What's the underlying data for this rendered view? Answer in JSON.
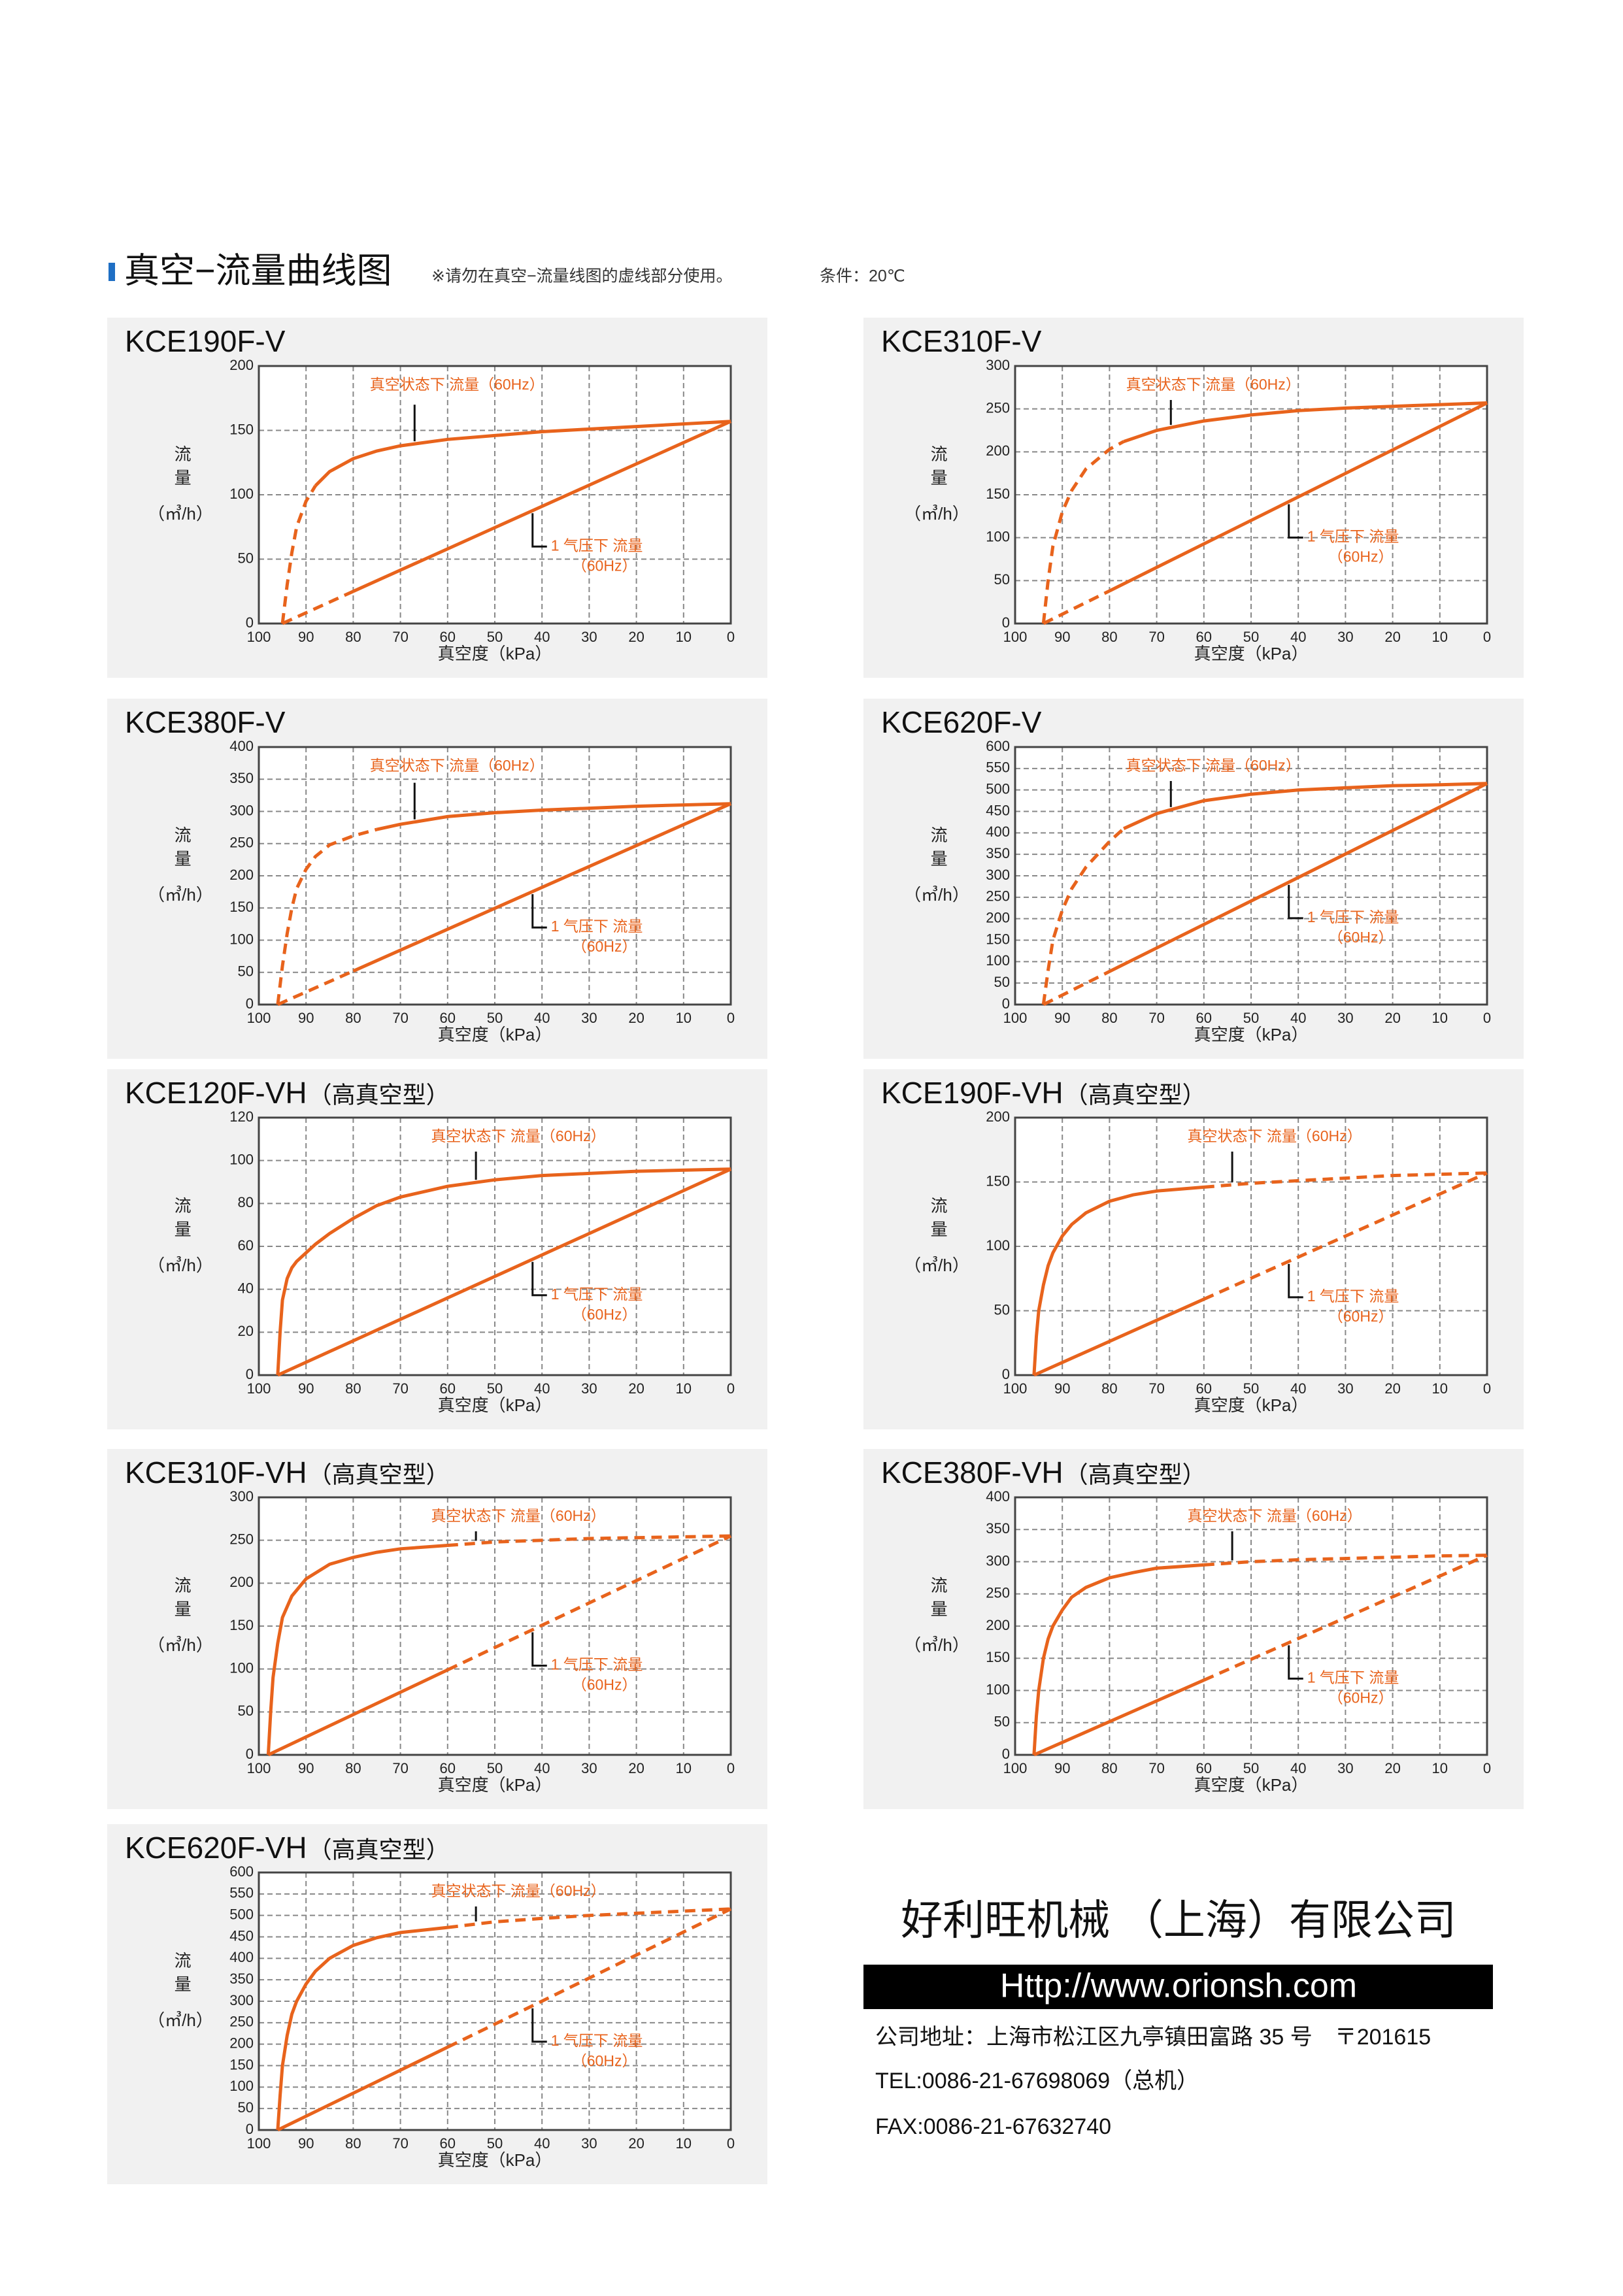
{
  "header": {
    "title": "真空−流量曲线图",
    "note": "※请勿在真空−流量线图的虚线部分使用。",
    "condition": "条件：20℃"
  },
  "chart_data": [
    {
      "type": "line",
      "title": "KCE190F-V",
      "y_label": "流量",
      "y_unit": "（㎥/h）",
      "x_label": "真空度（kPa）",
      "xlim": [
        100,
        0
      ],
      "xticks": [
        100,
        90,
        80,
        70,
        60,
        50,
        40,
        30,
        20,
        10,
        0
      ],
      "ylim": [
        0,
        200
      ],
      "yticks": [
        0,
        50,
        100,
        150,
        200
      ],
      "grid": true,
      "series": [
        {
          "name": "真空状态下 流量（60Hz）",
          "color": "#e8631c",
          "x": [
            95,
            94,
            93,
            92,
            90,
            88,
            85,
            80,
            75,
            70,
            60,
            50,
            40,
            30,
            20,
            10,
            0
          ],
          "values": [
            0,
            30,
            55,
            75,
            95,
            107,
            118,
            128,
            134,
            138,
            143,
            146,
            149,
            151,
            153,
            155,
            157
          ],
          "segment_styles": [
            "dashed",
            "dashed",
            "dashed",
            "dashed",
            "dashed",
            "solid",
            "solid",
            "solid",
            "solid",
            "solid",
            "solid",
            "solid",
            "solid",
            "solid",
            "solid",
            "solid"
          ]
        },
        {
          "name": "1 气压下 流量",
          "note": "（60Hz）",
          "color": "#e8631c",
          "x": [
            95,
            80,
            0
          ],
          "values": [
            0,
            25,
            157
          ],
          "segment_styles": [
            "dashed",
            "solid"
          ]
        }
      ]
    },
    {
      "type": "line",
      "title": "KCE310F-V",
      "y_label": "流量",
      "y_unit": "（㎥/h）",
      "x_label": "真空度（kPa）",
      "xlim": [
        100,
        0
      ],
      "xticks": [
        100,
        90,
        80,
        70,
        60,
        50,
        40,
        30,
        20,
        10,
        0
      ],
      "ylim": [
        0,
        300
      ],
      "yticks": [
        0,
        50,
        100,
        150,
        200,
        250,
        300
      ],
      "grid": true,
      "series": [
        {
          "name": "真空状态下 流量（60Hz）",
          "color": "#e8631c",
          "x": [
            94,
            93,
            92,
            90,
            88,
            85,
            80,
            77,
            70,
            60,
            50,
            40,
            30,
            20,
            10,
            0
          ],
          "values": [
            0,
            50,
            90,
            130,
            155,
            180,
            203,
            212,
            225,
            236,
            243,
            248,
            251,
            253,
            255,
            257
          ],
          "segment_styles": [
            "dashed",
            "dashed",
            "dashed",
            "dashed",
            "dashed",
            "dashed",
            "dashed",
            "solid",
            "solid",
            "solid",
            "solid",
            "solid",
            "solid",
            "solid",
            "solid"
          ]
        },
        {
          "name": "1 气压下 流量",
          "note": "（60Hz）",
          "color": "#e8631c",
          "x": [
            94,
            80,
            0
          ],
          "values": [
            0,
            38,
            257
          ],
          "segment_styles": [
            "dashed",
            "solid"
          ]
        }
      ]
    },
    {
      "type": "line",
      "title": "KCE380F-V",
      "y_label": "流量",
      "y_unit": "（㎥/h）",
      "x_label": "真空度（kPa）",
      "xlim": [
        100,
        0
      ],
      "xticks": [
        100,
        90,
        80,
        70,
        60,
        50,
        40,
        30,
        20,
        10,
        0
      ],
      "ylim": [
        0,
        400
      ],
      "yticks": [
        0,
        50,
        100,
        150,
        200,
        250,
        300,
        350,
        400
      ],
      "grid": true,
      "series": [
        {
          "name": "真空状态下 流量（60Hz）",
          "color": "#e8631c",
          "x": [
            96,
            95,
            94,
            93,
            92,
            90,
            88,
            85,
            80,
            75,
            70,
            60,
            50,
            40,
            30,
            20,
            10,
            0
          ],
          "values": [
            0,
            60,
            110,
            150,
            180,
            210,
            230,
            248,
            262,
            272,
            280,
            292,
            298,
            302,
            305,
            308,
            310,
            312
          ],
          "segment_styles": [
            "dashed",
            "dashed",
            "dashed",
            "dashed",
            "dashed",
            "dashed",
            "dashed",
            "dashed",
            "dashed",
            "solid",
            "solid",
            "solid",
            "solid",
            "solid",
            "solid",
            "solid",
            "solid"
          ]
        },
        {
          "name": "1 气压下 流量",
          "note": "（60Hz）",
          "color": "#e8631c",
          "x": [
            96,
            80,
            0
          ],
          "values": [
            0,
            52,
            312
          ],
          "segment_styles": [
            "dashed",
            "solid"
          ]
        }
      ]
    },
    {
      "type": "line",
      "title": "KCE620F-V",
      "y_label": "流量",
      "y_unit": "（㎥/h）",
      "x_label": "真空度（kPa）",
      "xlim": [
        100,
        0
      ],
      "xticks": [
        100,
        90,
        80,
        70,
        60,
        50,
        40,
        30,
        20,
        10,
        0
      ],
      "ylim": [
        0,
        600
      ],
      "yticks": [
        0,
        50,
        100,
        150,
        200,
        250,
        300,
        350,
        400,
        450,
        500,
        550,
        600
      ],
      "grid": true,
      "series": [
        {
          "name": "真空状态下 流量（60Hz）",
          "color": "#e8631c",
          "x": [
            94,
            93,
            92,
            90,
            88,
            85,
            80,
            77,
            70,
            60,
            50,
            40,
            30,
            20,
            10,
            0
          ],
          "values": [
            0,
            80,
            150,
            220,
            270,
            320,
            380,
            410,
            445,
            475,
            490,
            500,
            505,
            510,
            512,
            515
          ],
          "segment_styles": [
            "dashed",
            "dashed",
            "dashed",
            "dashed",
            "dashed",
            "dashed",
            "dashed",
            "solid",
            "solid",
            "solid",
            "solid",
            "solid",
            "solid",
            "solid",
            "solid"
          ]
        },
        {
          "name": "1 气压下 流量",
          "note": "（60Hz）",
          "color": "#e8631c",
          "x": [
            94,
            80,
            0
          ],
          "values": [
            0,
            77,
            515
          ],
          "segment_styles": [
            "dashed",
            "solid"
          ]
        }
      ]
    },
    {
      "type": "line",
      "title": "KCE120F-VH",
      "subtitle": "（高真空型）",
      "y_label": "流量",
      "y_unit": "（㎥/h）",
      "x_label": "真空度（kPa）",
      "xlim": [
        100,
        0
      ],
      "xticks": [
        100,
        90,
        80,
        70,
        60,
        50,
        40,
        30,
        20,
        10,
        0
      ],
      "ylim": [
        0,
        120
      ],
      "yticks": [
        0,
        20,
        40,
        60,
        80,
        100,
        120
      ],
      "grid": true,
      "series": [
        {
          "name": "真空状态下 流量（60Hz）",
          "color": "#e8631c",
          "x": [
            96,
            95.5,
            95,
            94,
            93,
            92,
            90,
            88,
            85,
            80,
            75,
            70,
            60,
            50,
            40,
            30,
            20,
            10,
            0
          ],
          "values": [
            0,
            20,
            35,
            45,
            50,
            53,
            57,
            61,
            66,
            73,
            79,
            83,
            88,
            91,
            93,
            94,
            95,
            95.5,
            96
          ],
          "segment_styles": [
            "solid",
            "solid",
            "solid",
            "solid",
            "solid",
            "solid",
            "solid",
            "solid",
            "solid",
            "solid",
            "solid",
            "solid",
            "solid",
            "solid",
            "solid",
            "solid",
            "solid",
            "solid"
          ]
        },
        {
          "name": "1 气压下 流量",
          "note": "（60Hz）",
          "color": "#e8631c",
          "x": [
            96,
            0
          ],
          "values": [
            0,
            96
          ],
          "segment_styles": [
            "solid"
          ]
        }
      ]
    },
    {
      "type": "line",
      "title": "KCE190F-VH",
      "subtitle": "（高真空型）",
      "y_label": "流量",
      "y_unit": "（㎥/h）",
      "x_label": "真空度（kPa）",
      "xlim": [
        100,
        0
      ],
      "xticks": [
        100,
        90,
        80,
        70,
        60,
        50,
        40,
        30,
        20,
        10,
        0
      ],
      "ylim": [
        0,
        200
      ],
      "yticks": [
        0,
        50,
        100,
        150,
        200
      ],
      "grid": true,
      "series": [
        {
          "name": "真空状态下 流量（60Hz）",
          "color": "#e8631c",
          "x": [
            96,
            95.5,
            95,
            94,
            93,
            92,
            90,
            88,
            85,
            80,
            75,
            70,
            60,
            50,
            40,
            30,
            20,
            10,
            0
          ],
          "values": [
            0,
            30,
            50,
            70,
            85,
            95,
            108,
            117,
            126,
            135,
            140,
            143,
            146,
            149,
            151,
            153,
            155,
            156,
            157
          ],
          "segment_styles": [
            "solid",
            "solid",
            "solid",
            "solid",
            "solid",
            "solid",
            "solid",
            "solid",
            "solid",
            "solid",
            "solid",
            "solid",
            "dashed",
            "dashed",
            "dashed",
            "dashed",
            "dashed",
            "dashed"
          ]
        },
        {
          "name": "1 气压下 流量",
          "note": "（60Hz）",
          "color": "#e8631c",
          "x": [
            96,
            60,
            0
          ],
          "values": [
            0,
            59,
            157
          ],
          "segment_styles": [
            "solid",
            "dashed"
          ]
        }
      ]
    },
    {
      "type": "line",
      "title": "KCE310F-VH",
      "subtitle": "（高真空型）",
      "y_label": "流量",
      "y_unit": "（㎥/h）",
      "x_label": "真空度（kPa）",
      "xlim": [
        100,
        0
      ],
      "xticks": [
        100,
        90,
        80,
        70,
        60,
        50,
        40,
        30,
        20,
        10,
        0
      ],
      "ylim": [
        0,
        300
      ],
      "yticks": [
        0,
        50,
        100,
        150,
        200,
        250,
        300
      ],
      "grid": true,
      "series": [
        {
          "name": "真空状态下 流量（60Hz）",
          "color": "#e8631c",
          "x": [
            98,
            97.5,
            97,
            96,
            95,
            93,
            90,
            85,
            80,
            75,
            70,
            60,
            50,
            40,
            30,
            20,
            10,
            0
          ],
          "values": [
            0,
            50,
            90,
            130,
            160,
            185,
            205,
            222,
            230,
            236,
            240,
            244,
            248,
            250,
            252,
            253,
            254,
            255
          ],
          "segment_styles": [
            "solid",
            "solid",
            "solid",
            "solid",
            "solid",
            "solid",
            "solid",
            "solid",
            "solid",
            "solid",
            "solid",
            "dashed",
            "dashed",
            "dashed",
            "dashed",
            "dashed",
            "dashed"
          ]
        },
        {
          "name": "1 气压下 流量",
          "note": "（60Hz）",
          "color": "#e8631c",
          "x": [
            98,
            60,
            0
          ],
          "values": [
            0,
            99,
            255
          ],
          "segment_styles": [
            "solid",
            "dashed"
          ]
        }
      ]
    },
    {
      "type": "line",
      "title": "KCE380F-VH",
      "subtitle": "（高真空型）",
      "y_label": "流量",
      "y_unit": "（㎥/h）",
      "x_label": "真空度（kPa）",
      "xlim": [
        100,
        0
      ],
      "xticks": [
        100,
        90,
        80,
        70,
        60,
        50,
        40,
        30,
        20,
        10,
        0
      ],
      "ylim": [
        0,
        400
      ],
      "yticks": [
        0,
        50,
        100,
        150,
        200,
        250,
        300,
        350,
        400
      ],
      "grid": true,
      "series": [
        {
          "name": "真空状态下 流量（60Hz）",
          "color": "#e8631c",
          "x": [
            96,
            95.5,
            95,
            94,
            93,
            92,
            90,
            88,
            85,
            80,
            75,
            70,
            60,
            50,
            40,
            30,
            20,
            10,
            0
          ],
          "values": [
            0,
            60,
            100,
            150,
            180,
            200,
            225,
            245,
            260,
            275,
            283,
            290,
            295,
            300,
            303,
            305,
            307,
            309,
            310
          ],
          "segment_styles": [
            "solid",
            "solid",
            "solid",
            "solid",
            "solid",
            "solid",
            "solid",
            "solid",
            "solid",
            "solid",
            "solid",
            "solid",
            "dashed",
            "dashed",
            "dashed",
            "dashed",
            "dashed",
            "dashed"
          ]
        },
        {
          "name": "1 气压下 流量",
          "note": "（60Hz）",
          "color": "#e8631c",
          "x": [
            96,
            60,
            0
          ],
          "values": [
            0,
            116,
            310
          ],
          "segment_styles": [
            "solid",
            "dashed"
          ]
        }
      ]
    },
    {
      "type": "line",
      "title": "KCE620F-VH",
      "subtitle": "（高真空型）",
      "y_label": "流量",
      "y_unit": "（㎥/h）",
      "x_label": "真空度（kPa）",
      "xlim": [
        100,
        0
      ],
      "xticks": [
        100,
        90,
        80,
        70,
        60,
        50,
        40,
        30,
        20,
        10,
        0
      ],
      "ylim": [
        0,
        600
      ],
      "yticks": [
        0,
        50,
        100,
        150,
        200,
        250,
        300,
        350,
        400,
        450,
        500,
        550,
        600
      ],
      "grid": true,
      "series": [
        {
          "name": "真空状态下 流量（60Hz）",
          "color": "#e8631c",
          "x": [
            96,
            95.5,
            95,
            94,
            93,
            92,
            90,
            88,
            85,
            80,
            75,
            70,
            60,
            50,
            40,
            30,
            20,
            10,
            0
          ],
          "values": [
            0,
            80,
            150,
            220,
            270,
            300,
            340,
            370,
            400,
            430,
            448,
            460,
            472,
            485,
            493,
            500,
            505,
            510,
            515
          ],
          "segment_styles": [
            "solid",
            "solid",
            "solid",
            "solid",
            "solid",
            "solid",
            "solid",
            "solid",
            "solid",
            "solid",
            "solid",
            "solid",
            "dashed",
            "dashed",
            "dashed",
            "dashed",
            "dashed",
            "dashed"
          ]
        },
        {
          "name": "1 气压下 流量",
          "note": "（60Hz）",
          "color": "#e8631c",
          "x": [
            96,
            60,
            0
          ],
          "values": [
            0,
            193,
            515
          ],
          "segment_styles": [
            "solid",
            "dashed"
          ]
        }
      ]
    }
  ],
  "footer": {
    "company": "好利旺机械 （上海）有限公司",
    "url": "Http://www.orionsh.com",
    "address": "公司地址：上海市松江区九亭镇田富路 35 号　〒201615",
    "tel": "TEL:0086-21-67698069（总机）",
    "fax": "FAX:0086-21-67632740"
  }
}
